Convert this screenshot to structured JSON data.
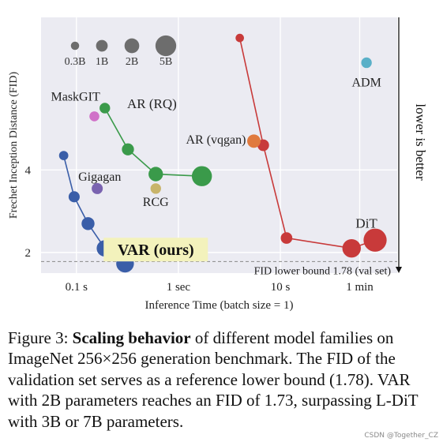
{
  "chart_data": {
    "type": "scatter",
    "xlabel": "Inference Time (batch size = 1)",
    "ylabel": "Frechet Inception Distance (FID)",
    "x_scale": "log",
    "x_ticks": [
      {
        "value": 0.1,
        "label": "0.1 s"
      },
      {
        "value": 1,
        "label": "1 sec"
      },
      {
        "value": 10,
        "label": "10 s"
      },
      {
        "value": 60,
        "label": "1 min"
      }
    ],
    "y_ticks": [
      {
        "value": 2,
        "label": "2"
      },
      {
        "value": 4,
        "label": "4"
      }
    ],
    "xlim": [
      0.045,
      140
    ],
    "ylim": [
      1.5,
      7.7
    ],
    "right_axis_label": "lower is better",
    "size_legend": [
      {
        "label": "0.3B",
        "params_b": 0.3
      },
      {
        "label": "1B",
        "params_b": 1
      },
      {
        "label": "2B",
        "params_b": 2
      },
      {
        "label": "5B",
        "params_b": 5
      }
    ],
    "reference_line": {
      "y": 1.78,
      "label": "FID lower bound 1.78 (val set)"
    },
    "series": [
      {
        "name": "VAR (ours)",
        "color": "#3a5ea8",
        "points": [
          {
            "x": 0.075,
            "y": 4.35,
            "params_b": 0.3
          },
          {
            "x": 0.095,
            "y": 3.35,
            "params_b": 0.6
          },
          {
            "x": 0.13,
            "y": 2.7,
            "params_b": 1
          },
          {
            "x": 0.19,
            "y": 2.1,
            "params_b": 2
          },
          {
            "x": 0.3,
            "y": 1.73,
            "params_b": 2.5
          }
        ]
      },
      {
        "name": "",
        "color": "#3a9a4a",
        "points": [
          {
            "x": 0.19,
            "y": 5.5,
            "params_b": 0.5
          },
          {
            "x": 0.32,
            "y": 4.5,
            "params_b": 0.8
          },
          {
            "x": 0.6,
            "y": 3.9,
            "params_b": 1.4
          },
          {
            "x": 1.7,
            "y": 3.85,
            "params_b": 3.5
          }
        ]
      },
      {
        "name": "",
        "color": "#c83a3a",
        "points": [
          {
            "x": 4.0,
            "y": 7.2,
            "params_b": 0.2
          },
          {
            "x": 6.8,
            "y": 4.6,
            "params_b": 0.7
          },
          {
            "x": 11.5,
            "y": 2.35,
            "params_b": 0.7
          },
          {
            "x": 50,
            "y": 2.1,
            "params_b": 2.8
          },
          {
            "x": 85,
            "y": 2.3,
            "params_b": 5
          }
        ]
      }
    ],
    "single_points": [
      {
        "name": "MaskGIT",
        "label": "MaskGIT",
        "x": 0.15,
        "y": 5.3,
        "color": "#d070c8",
        "params_b": 0.4
      },
      {
        "name": "Gigagan",
        "label": "Gigagan",
        "x": 0.16,
        "y": 3.55,
        "color": "#7a63b0",
        "params_b": 0.6
      },
      {
        "name": "RCG",
        "label": "RCG",
        "x": 0.6,
        "y": 3.55,
        "color": "#c8b46a",
        "params_b": 0.5
      },
      {
        "name": "AR (vqgan)",
        "label": "AR (vqgan)",
        "x": 5.5,
        "y": 4.7,
        "color": "#e07a3e",
        "params_b": 1.1
      },
      {
        "name": "ADM",
        "label": "ADM",
        "x": 70,
        "y": 6.6,
        "color": "#5ab0c8",
        "params_b": 0.5
      }
    ],
    "text_labels": [
      {
        "text": "AR (RQ)",
        "x": 0.55,
        "y": 5.5
      },
      {
        "text": "DiT",
        "x": 70,
        "y": 2.6
      }
    ],
    "highlight_label": {
      "text": "VAR (ours)",
      "x": 0.6,
      "y": 2.07,
      "bg": "#f3f2bc"
    }
  },
  "caption": {
    "prefix": "Figure 3: ",
    "bold": "Scaling behavior",
    "rest": " of different model families on ImageNet 256×256 generation benchmark. The FID of the validation set serves as a reference lower bound (1.78). VAR with 2B parameters reaches an FID of 1.73, surpassing L-DiT with 3B or 7B parameters."
  },
  "watermark": "CSDN @Together_CZ"
}
